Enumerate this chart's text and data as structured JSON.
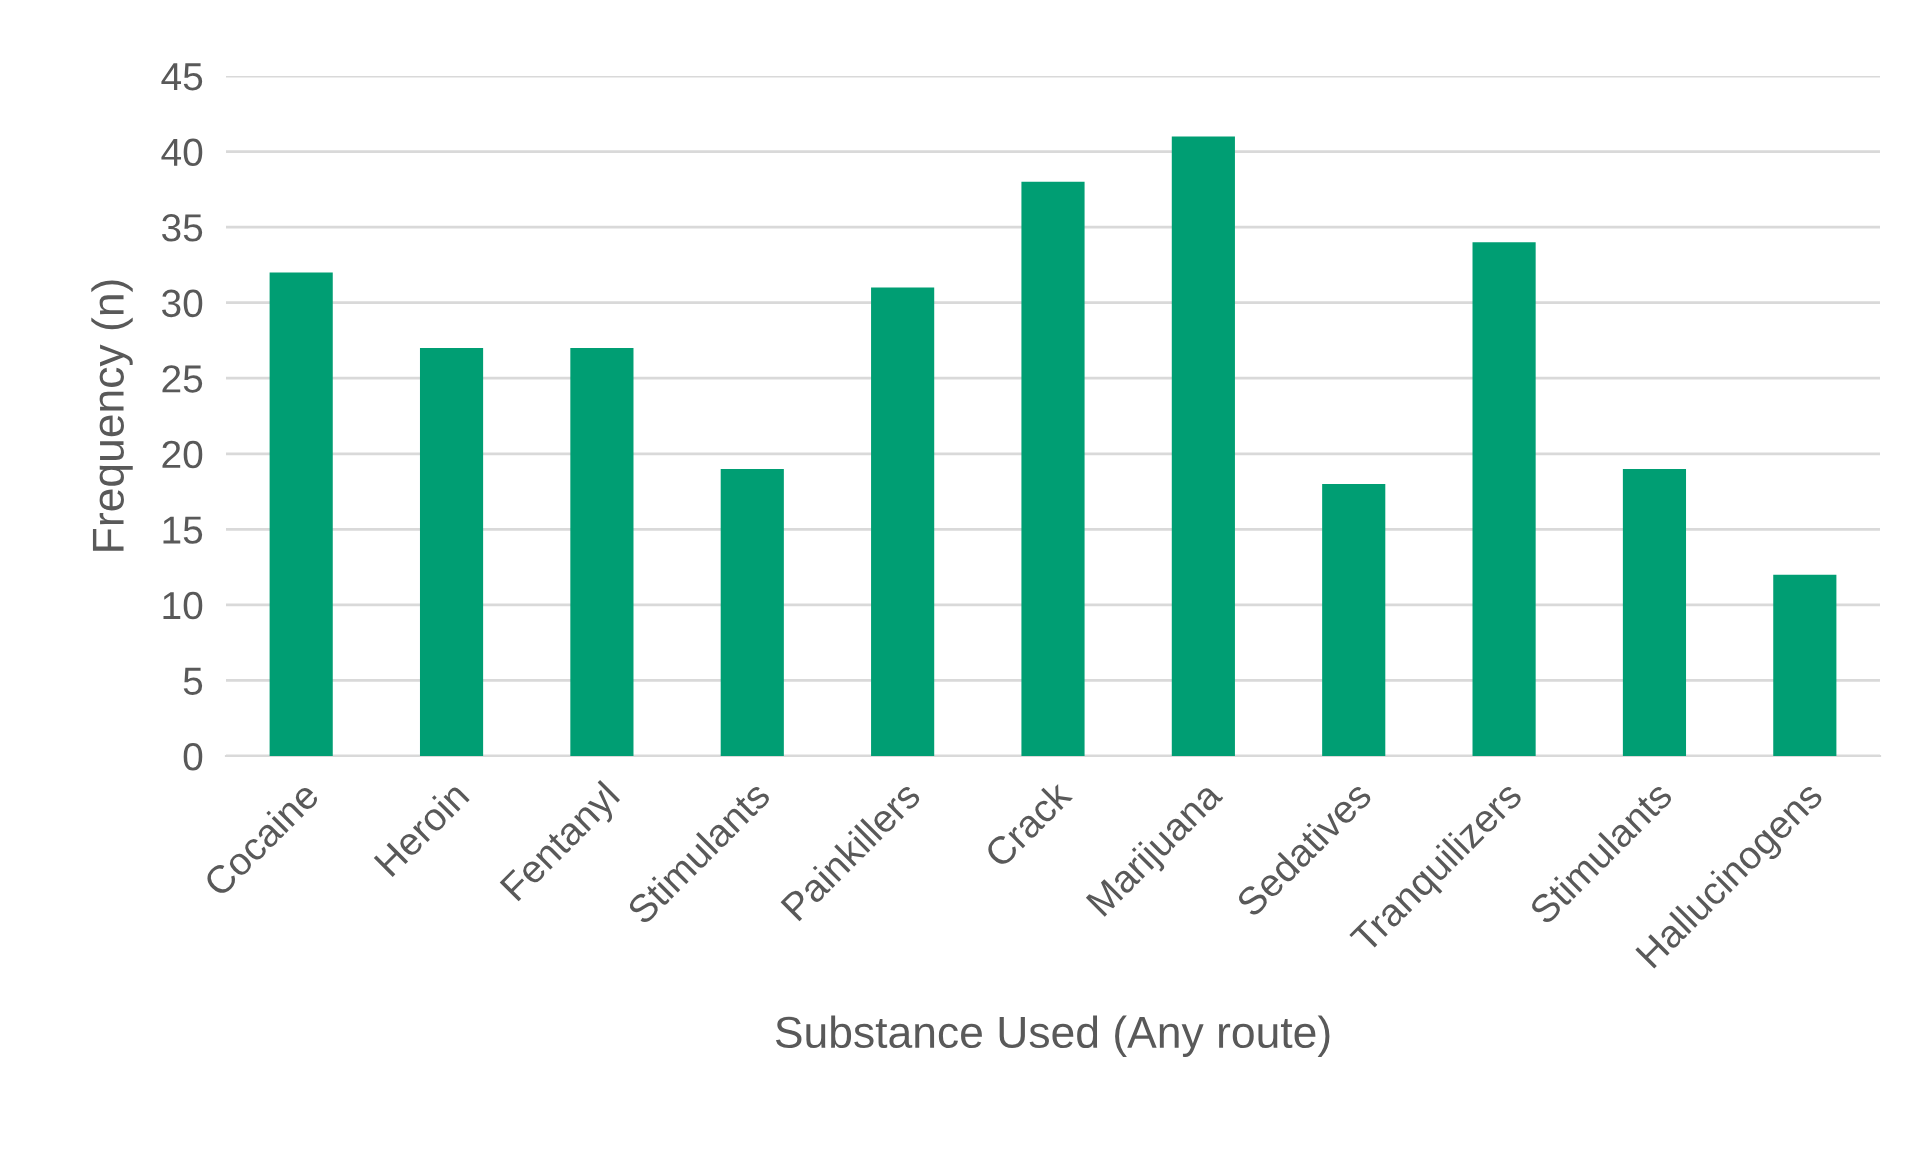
{
  "chart_data": {
    "type": "bar",
    "xlabel": "Substance Used (Any route)",
    "ylabel": "Frequency (n)",
    "categories": [
      "Cocaine",
      "Heroin",
      "Fentanyl",
      "Stimulants",
      "Painkillers",
      "Crack",
      "Marijuana",
      "Sedatives",
      "Tranquilizers",
      "Stimulants",
      "Hallucinogens"
    ],
    "values": [
      32,
      27,
      27,
      19,
      31,
      38,
      41,
      18,
      34,
      19,
      12
    ],
    "color": "#009e73",
    "ylim": [
      0,
      45
    ],
    "yticks": [
      0,
      5,
      10,
      15,
      20,
      25,
      30,
      35,
      40,
      45
    ],
    "grid": "y",
    "legend": false
  }
}
